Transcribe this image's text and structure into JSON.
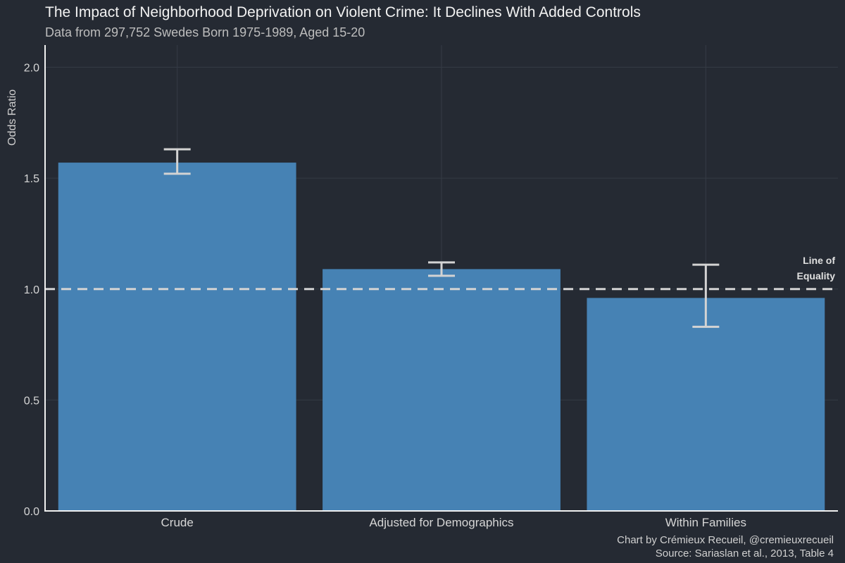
{
  "chart_data": {
    "type": "bar",
    "title": "The Impact of Neighborhood Deprivation on Violent Crime: It Declines With Added Controls",
    "subtitle": "Data from 297,752 Swedes Born 1975-1989, Aged 15-20",
    "ylabel": "Odds Ratio",
    "xlabel": "",
    "categories": [
      "Crude",
      "Adjusted for Demographics",
      "Within Families"
    ],
    "values": [
      1.57,
      1.09,
      0.96
    ],
    "error_low": [
      1.52,
      1.06,
      0.83
    ],
    "error_high": [
      1.63,
      1.12,
      1.11
    ],
    "ylim": [
      0,
      2.1
    ],
    "yticks": [
      0.0,
      0.5,
      1.0,
      1.5,
      2.0
    ],
    "ytick_labels": [
      "0.0",
      "0.5",
      "1.0",
      "1.5",
      "2.0"
    ],
    "reference_line": {
      "value": 1.0,
      "label_line1": "Line of",
      "label_line2": "Equality"
    },
    "grid": true,
    "caption_line1": "Chart by Crémieux Recueil, @cremieuxrecueil",
    "caption_line2": "Source: Sariaslan et al., 2013, Table 4",
    "colors": {
      "background": "#252a33",
      "bar": "#4682b4",
      "errorbar": "#d3d3d3",
      "refline": "#d3d3d3",
      "grid": "#353b45",
      "axis": "#f0f0f0"
    }
  }
}
